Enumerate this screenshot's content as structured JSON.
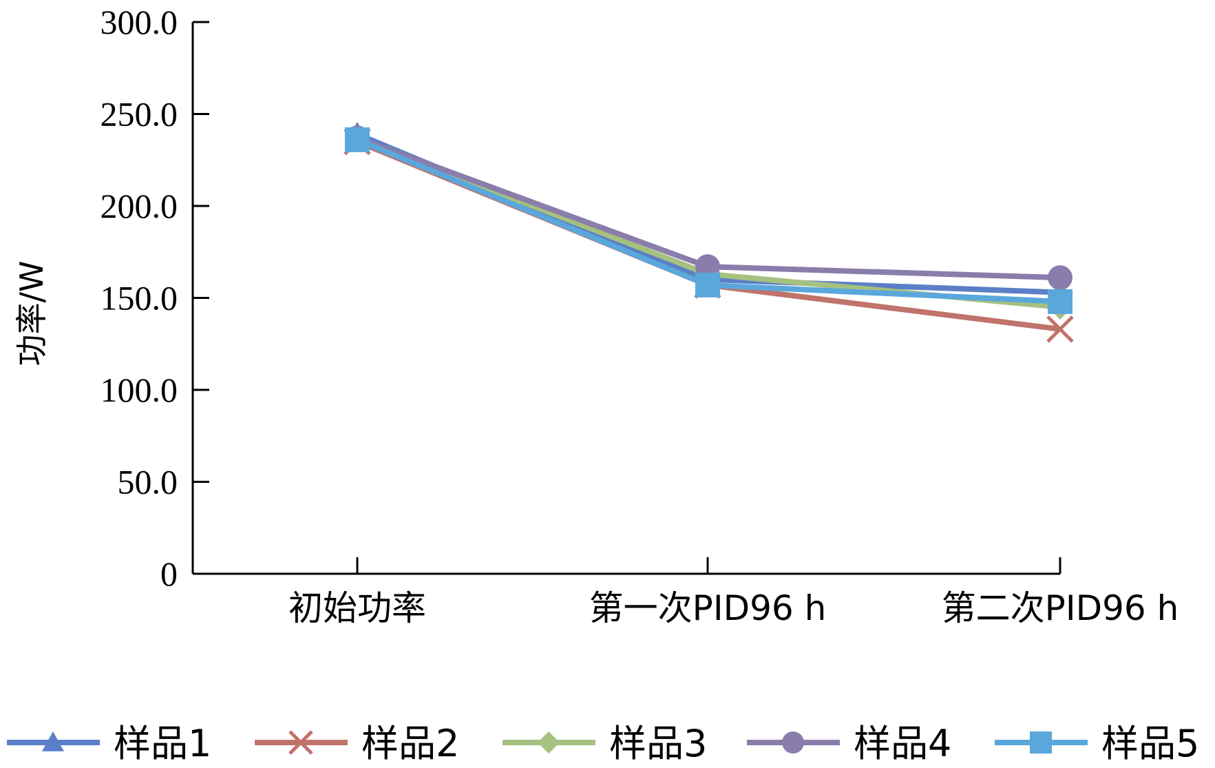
{
  "chart_data": {
    "type": "line",
    "title": "",
    "xlabel": "",
    "ylabel": "功率/W",
    "ylim": [
      0,
      300
    ],
    "yticks": [
      "0",
      "50.0",
      "100.0",
      "150.0",
      "200.0",
      "250.0",
      "300.0"
    ],
    "categories": [
      "初始功率",
      "第一次PID96 h",
      "第二次PID96 h"
    ],
    "grid": false,
    "legend_position": "bottom",
    "series": [
      {
        "name": "样品1",
        "values": [
          239,
          160,
          153
        ],
        "color": "#5b7fc7",
        "marker": "triangle"
      },
      {
        "name": "样品2",
        "values": [
          235,
          157,
          133
        ],
        "color": "#c0736b",
        "marker": "x"
      },
      {
        "name": "样品3",
        "values": [
          237,
          163,
          145
        ],
        "color": "#a5c07f",
        "marker": "diamond"
      },
      {
        "name": "样品4",
        "values": [
          237,
          167,
          161
        ],
        "color": "#8a7dab",
        "marker": "circle"
      },
      {
        "name": "样品5",
        "values": [
          236,
          157,
          148
        ],
        "color": "#5aa7dc",
        "marker": "square"
      }
    ]
  }
}
